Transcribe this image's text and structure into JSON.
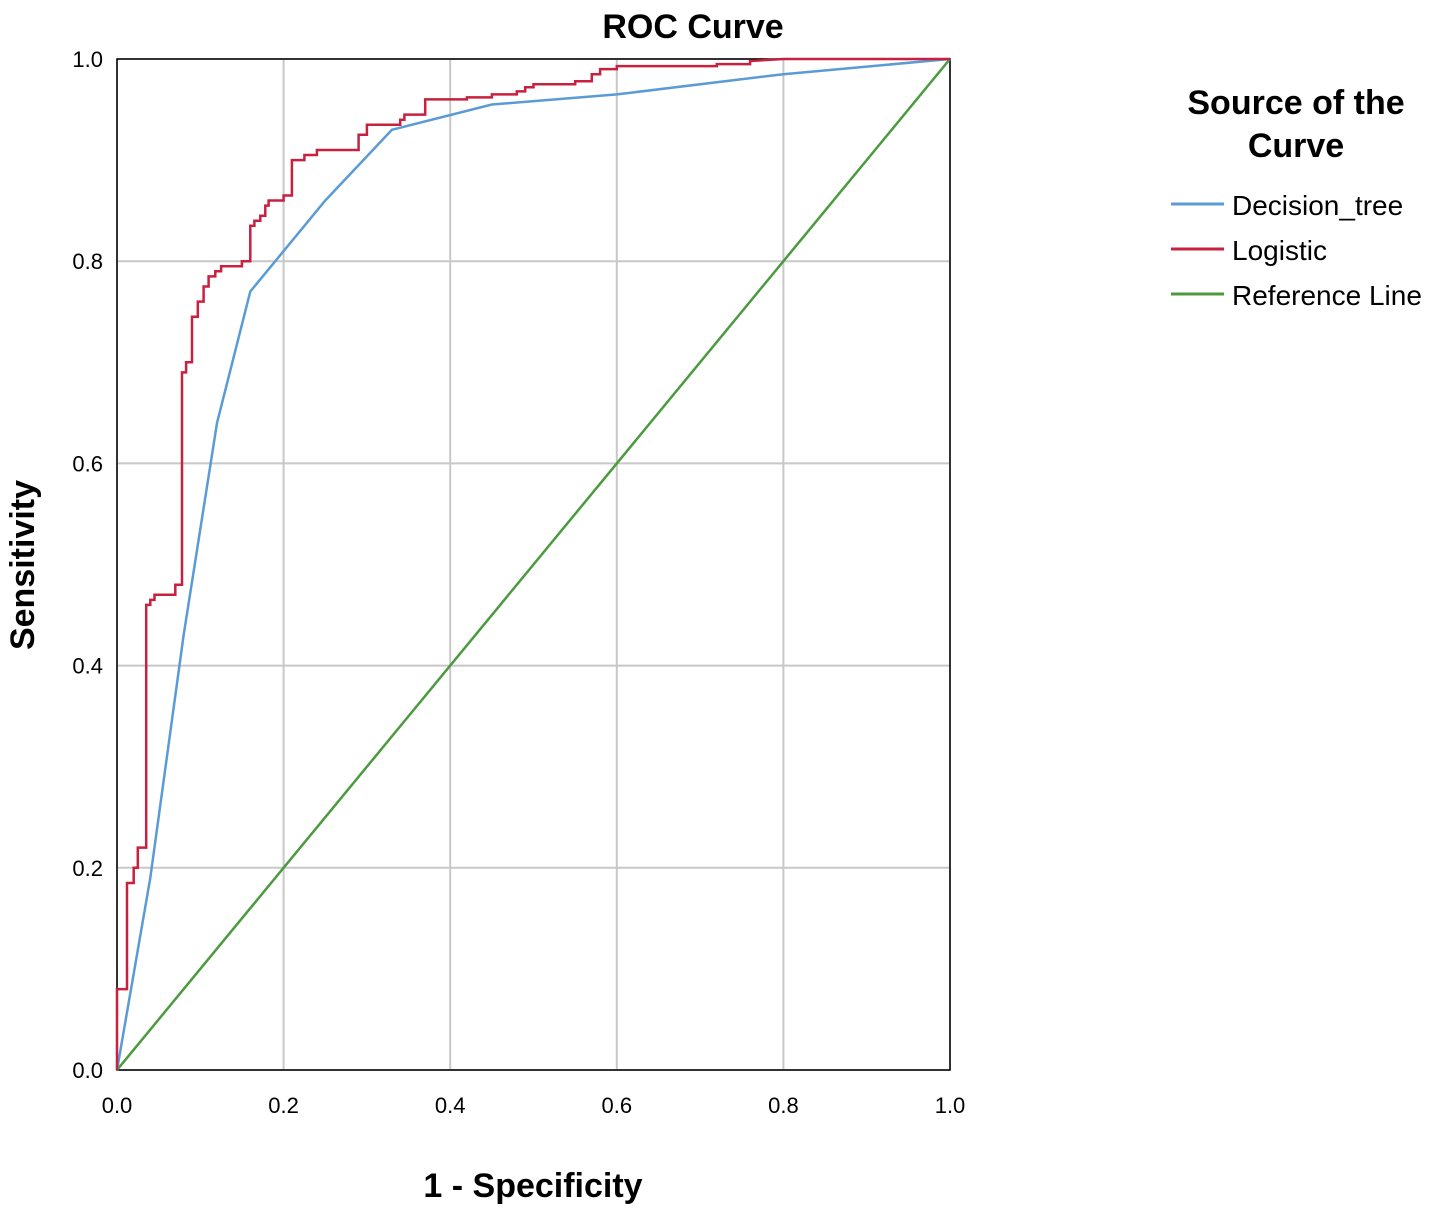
{
  "chart_data": {
    "type": "line",
    "title": "ROC Curve",
    "xlabel": "1 - Specificity",
    "ylabel": "Sensitivity",
    "xlim": [
      0,
      1
    ],
    "ylim": [
      0,
      1
    ],
    "xticks": [
      "0.0",
      "0.2",
      "0.4",
      "0.6",
      "0.8",
      "1.0"
    ],
    "yticks": [
      "0.0",
      "0.2",
      "0.4",
      "0.6",
      "0.8",
      "1.0"
    ],
    "grid": true,
    "legend": {
      "title_lines": [
        "Source of the",
        "Curve"
      ],
      "placement": "right"
    },
    "series": [
      {
        "name": "Decision_tree",
        "color": "#5b9bd5",
        "x": [
          0.0,
          0.04,
          0.08,
          0.12,
          0.16,
          0.25,
          0.33,
          0.45,
          0.6,
          0.8,
          1.0
        ],
        "y": [
          0.0,
          0.19,
          0.43,
          0.64,
          0.77,
          0.86,
          0.93,
          0.955,
          0.965,
          0.985,
          1.0
        ]
      },
      {
        "name": "Logistic",
        "color": "#c8203f",
        "x": [
          0.0,
          0.0,
          0.005,
          0.005,
          0.012,
          0.012,
          0.02,
          0.02,
          0.025,
          0.025,
          0.035,
          0.035,
          0.04,
          0.04,
          0.045,
          0.045,
          0.07,
          0.07,
          0.078,
          0.078,
          0.083,
          0.083,
          0.09,
          0.09,
          0.097,
          0.097,
          0.104,
          0.104,
          0.11,
          0.11,
          0.118,
          0.118,
          0.125,
          0.125,
          0.15,
          0.15,
          0.16,
          0.16,
          0.165,
          0.165,
          0.172,
          0.172,
          0.178,
          0.178,
          0.182,
          0.182,
          0.2,
          0.2,
          0.21,
          0.21,
          0.225,
          0.225,
          0.24,
          0.24,
          0.29,
          0.29,
          0.3,
          0.3,
          0.34,
          0.34,
          0.345,
          0.345,
          0.37,
          0.37,
          0.42,
          0.42,
          0.45,
          0.45,
          0.48,
          0.48,
          0.49,
          0.49,
          0.5,
          0.5,
          0.55,
          0.55,
          0.57,
          0.57,
          0.58,
          0.58,
          0.6,
          0.6,
          0.72,
          0.72,
          0.76,
          0.76,
          0.8,
          1.0
        ],
        "y": [
          0.0,
          0.08,
          0.08,
          0.08,
          0.08,
          0.185,
          0.185,
          0.2,
          0.2,
          0.22,
          0.22,
          0.46,
          0.46,
          0.465,
          0.465,
          0.47,
          0.47,
          0.48,
          0.48,
          0.69,
          0.69,
          0.7,
          0.7,
          0.745,
          0.745,
          0.76,
          0.76,
          0.775,
          0.775,
          0.785,
          0.785,
          0.79,
          0.79,
          0.795,
          0.795,
          0.8,
          0.8,
          0.835,
          0.835,
          0.84,
          0.84,
          0.845,
          0.845,
          0.855,
          0.855,
          0.86,
          0.86,
          0.865,
          0.865,
          0.9,
          0.9,
          0.905,
          0.905,
          0.91,
          0.91,
          0.925,
          0.925,
          0.935,
          0.935,
          0.94,
          0.94,
          0.945,
          0.945,
          0.96,
          0.96,
          0.962,
          0.962,
          0.965,
          0.965,
          0.968,
          0.968,
          0.972,
          0.972,
          0.975,
          0.975,
          0.978,
          0.978,
          0.985,
          0.985,
          0.99,
          0.99,
          0.993,
          0.993,
          0.995,
          0.995,
          0.998,
          1.0,
          1.0
        ]
      },
      {
        "name": "Reference Line",
        "color": "#4c9a3f",
        "x": [
          0.0,
          1.0
        ],
        "y": [
          0.0,
          1.0
        ]
      }
    ]
  }
}
